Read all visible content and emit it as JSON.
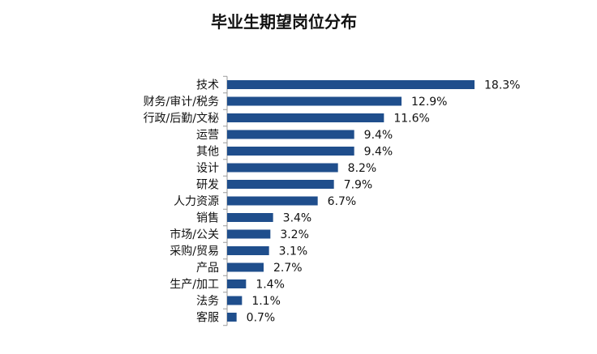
{
  "chart_data": {
    "type": "bar",
    "orientation": "horizontal",
    "title": "毕业生期望岗位分布",
    "categories": [
      "技术",
      "财务/审计/税务",
      "行政/后勤/文秘",
      "运营",
      "其他",
      "设计",
      "研发",
      "人力资源",
      "销售",
      "市场/公关",
      "采购/贸易",
      "产品",
      "生产/加工",
      "法务",
      "客服"
    ],
    "values": [
      18.3,
      12.9,
      11.6,
      9.4,
      9.4,
      8.2,
      7.9,
      6.7,
      3.4,
      3.2,
      3.1,
      2.7,
      1.4,
      1.1,
      0.7
    ],
    "value_labels": [
      "18.3%",
      "12.9%",
      "11.6%",
      "9.4%",
      "9.4%",
      "8.2%",
      "7.9%",
      "6.7%",
      "3.4%",
      "3.2%",
      "3.1%",
      "2.7%",
      "1.4%",
      "1.1%",
      "0.7%"
    ],
    "unit": "%",
    "xlim": [
      0,
      18.3
    ],
    "grid": false,
    "legend": "none",
    "bar_color": "#1f4e8c"
  }
}
